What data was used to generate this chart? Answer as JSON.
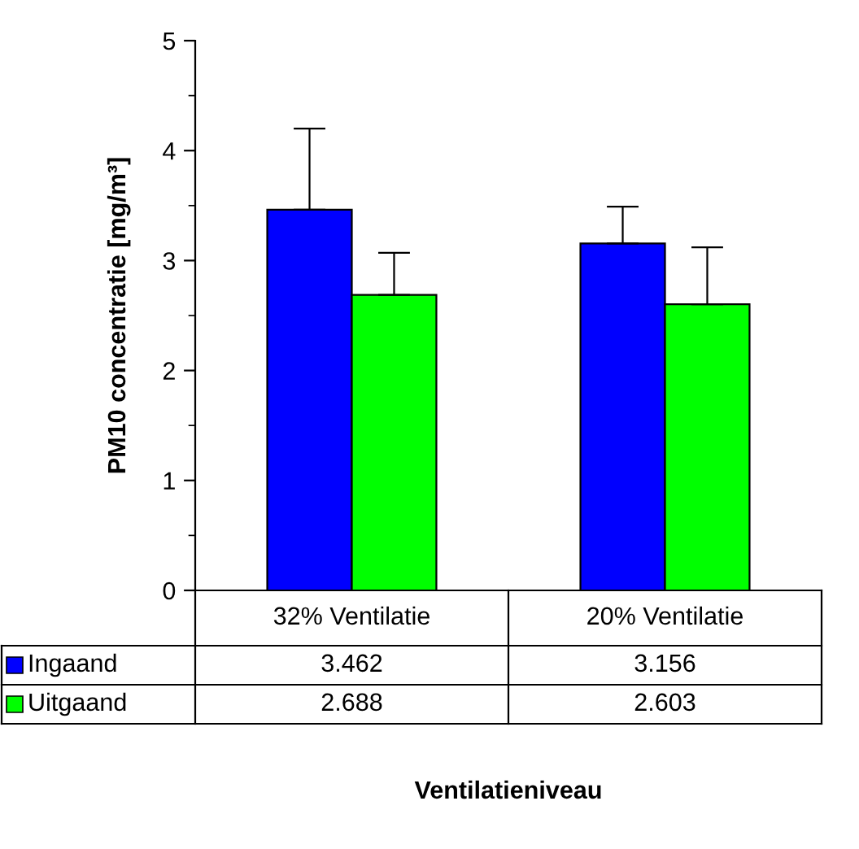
{
  "chart_data": {
    "type": "bar",
    "categories": [
      "32% Ventilatie",
      "20% Ventilatie"
    ],
    "series": [
      {
        "name": "Ingaand",
        "color": "#0000ff",
        "values": [
          3.462,
          3.156
        ],
        "errors": [
          [
            3.462,
            4.2
          ],
          [
            3.156,
            3.49
          ]
        ]
      },
      {
        "name": "Uitgaand",
        "color": "#00ff00",
        "values": [
          2.688,
          2.603
        ],
        "errors": [
          [
            2.688,
            3.07
          ],
          [
            2.603,
            3.12
          ]
        ]
      }
    ],
    "ylabel": "PM10 concentratie [mg/m³]",
    "annotations": [
      "Ventilatieniveau"
    ],
    "ylim": [
      0,
      5
    ],
    "yticks": [
      0,
      1,
      2,
      3,
      4,
      5
    ],
    "grid": false,
    "legend": "bottom",
    "data_labels": true
  }
}
